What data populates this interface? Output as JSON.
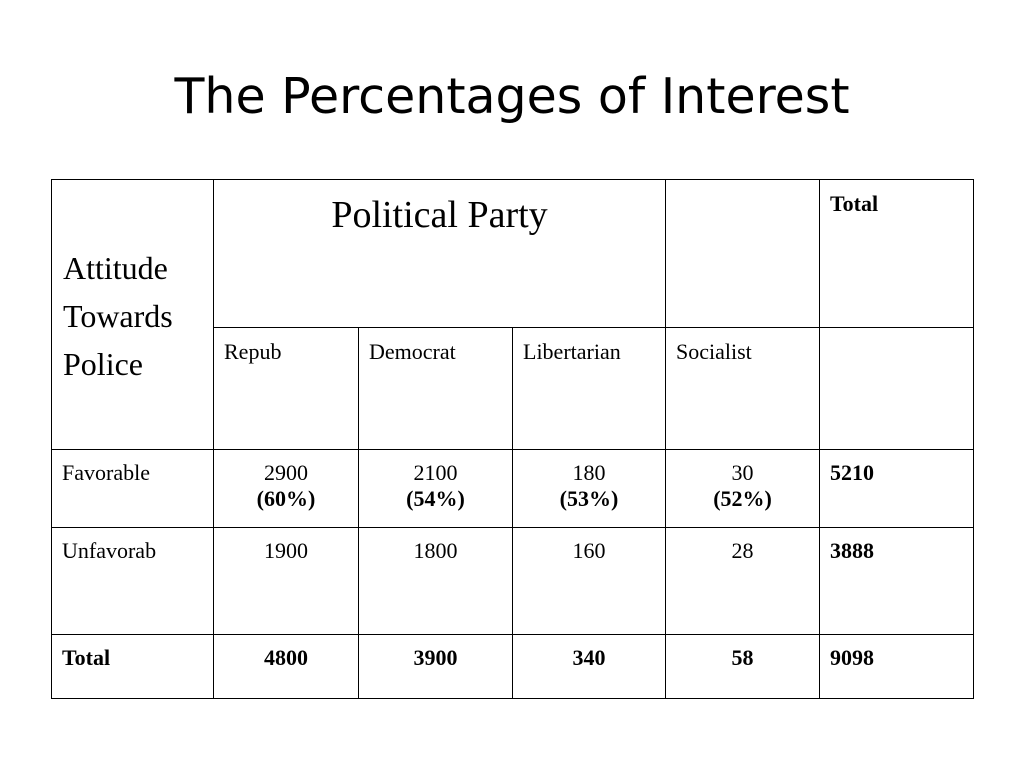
{
  "slide": {
    "title": "The Percentages of Interest"
  },
  "table": {
    "row_header": [
      "Attitude",
      "Towards",
      "Police"
    ],
    "group_header": "Political Party",
    "total_header": "Total",
    "columns": [
      "Repub",
      "Democrat",
      "Libertarian",
      "Socialist"
    ],
    "rows": [
      {
        "label": "Favorable",
        "values": [
          "2900",
          "2100",
          "180",
          "30"
        ],
        "percents": [
          "(60%)",
          "(54%)",
          "(53%)",
          "(52%)"
        ],
        "total": "5210"
      },
      {
        "label": "Unfavorab",
        "values": [
          "1900",
          "1800",
          "160",
          "28"
        ],
        "total": "3888"
      }
    ],
    "totals_row": {
      "label": "Total",
      "values": [
        "4800",
        "3900",
        "340",
        "58"
      ],
      "total": "9098"
    }
  }
}
